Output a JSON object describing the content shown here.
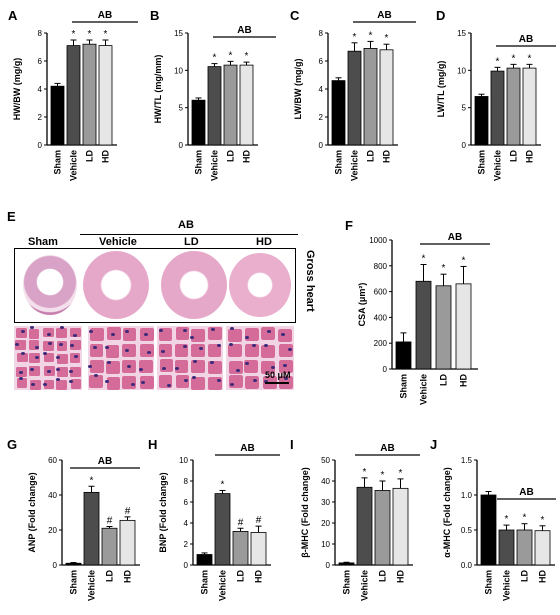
{
  "colors": {
    "sham": "#000000",
    "vehicle": "#4d4d4d",
    "ld": "#9a9a9a",
    "hd": "#e6e6e6",
    "gross_bg": "#ffffff",
    "tissue": "#d46b99",
    "tissue_light": "#f1d5e4",
    "lumen": "#ffffff",
    "nuclei": "#3b2a7a"
  },
  "panel_e": {
    "letter": "E",
    "group_label": "AB",
    "columns": [
      "Sham",
      "Vehicle",
      "LD",
      "HD"
    ],
    "side_label": "Gross heart",
    "scale_bar": "50 μM"
  },
  "chart_data": [
    {
      "panel": "A",
      "type": "bar",
      "group_label": "AB",
      "ylabel": "HW/BW (mg/g)",
      "ylim": [
        0,
        8
      ],
      "yticks": [
        0,
        2,
        4,
        6,
        8
      ],
      "categories": [
        "Sham",
        "Vehicle",
        "LD",
        "HD"
      ],
      "values": [
        4.2,
        7.1,
        7.2,
        7.1
      ],
      "errors": [
        0.2,
        0.4,
        0.3,
        0.4
      ],
      "marks": [
        "",
        "*",
        "*",
        "*"
      ]
    },
    {
      "panel": "B",
      "type": "bar",
      "group_label": "AB",
      "ylabel": "HW/TL (mg/mm)",
      "ylim": [
        0,
        15
      ],
      "yticks": [
        0,
        5,
        10,
        15
      ],
      "categories": [
        "Sham",
        "Vehicle",
        "LD",
        "HD"
      ],
      "values": [
        6.0,
        10.5,
        10.7,
        10.7
      ],
      "errors": [
        0.3,
        0.4,
        0.5,
        0.4
      ],
      "marks": [
        "",
        "*",
        "*",
        "*"
      ]
    },
    {
      "panel": "C",
      "type": "bar",
      "group_label": "AB",
      "ylabel": "LW/BW (mg/g)",
      "ylim": [
        0,
        8
      ],
      "yticks": [
        0,
        2,
        4,
        6,
        8
      ],
      "categories": [
        "Sham",
        "Vehicle",
        "LD",
        "HD"
      ],
      "values": [
        4.6,
        6.7,
        6.9,
        6.8
      ],
      "errors": [
        0.2,
        0.6,
        0.5,
        0.4
      ],
      "marks": [
        "",
        "*",
        "*",
        "*"
      ]
    },
    {
      "panel": "D",
      "type": "bar",
      "group_label": "AB",
      "ylabel": "LW/TL (mg/g)",
      "ylim": [
        0,
        15
      ],
      "yticks": [
        0,
        5,
        10,
        15
      ],
      "categories": [
        "Sham",
        "Vehicle",
        "LD",
        "HD"
      ],
      "values": [
        6.5,
        9.9,
        10.3,
        10.3
      ],
      "errors": [
        0.3,
        0.5,
        0.5,
        0.5
      ],
      "marks": [
        "",
        "*",
        "*",
        "*"
      ]
    },
    {
      "panel": "F",
      "type": "bar",
      "group_label": "AB",
      "ylabel": "CSA (μm²)",
      "ylim": [
        0,
        1000
      ],
      "yticks": [
        0,
        200,
        400,
        600,
        800,
        1000
      ],
      "categories": [
        "Sham",
        "Vehicle",
        "LD",
        "HD"
      ],
      "values": [
        210,
        680,
        645,
        660
      ],
      "errors": [
        70,
        130,
        90,
        135
      ],
      "marks": [
        "",
        "*",
        "*",
        "*"
      ]
    },
    {
      "panel": "G",
      "type": "bar",
      "group_label": "AB",
      "ylabel": "ANP (Fold change)",
      "ylim": [
        0,
        60
      ],
      "yticks": [
        0,
        20,
        40,
        60
      ],
      "categories": [
        "Sham",
        "Vehicle",
        "LD",
        "HD"
      ],
      "values": [
        1,
        41.5,
        21,
        25.5
      ],
      "errors": [
        0.4,
        3.5,
        1,
        2
      ],
      "marks": [
        "",
        "*",
        "#",
        "#"
      ]
    },
    {
      "panel": "H",
      "type": "bar",
      "group_label": "AB",
      "ylabel": "BNP (Fold change)",
      "ylim": [
        0,
        10
      ],
      "yticks": [
        0,
        2,
        4,
        6,
        8,
        10
      ],
      "categories": [
        "Sham",
        "Vehicle",
        "LD",
        "HD"
      ],
      "values": [
        1,
        6.8,
        3.2,
        3.1
      ],
      "errors": [
        0.15,
        0.3,
        0.3,
        0.6
      ],
      "marks": [
        "",
        "*",
        "#",
        "#"
      ]
    },
    {
      "panel": "I",
      "type": "bar",
      "group_label": "AB",
      "ylabel": "β-MHC (Fold change)",
      "ylim": [
        0,
        50
      ],
      "yticks": [
        0,
        10,
        20,
        30,
        40,
        50
      ],
      "categories": [
        "Sham",
        "Vehicle",
        "LD",
        "HD"
      ],
      "values": [
        1,
        37,
        35.5,
        36.5
      ],
      "errors": [
        0.3,
        4.5,
        4.5,
        4.5
      ],
      "marks": [
        "",
        "*",
        "*",
        "*"
      ]
    },
    {
      "panel": "J",
      "type": "bar",
      "group_label": "AB",
      "ylabel": "α-MHC (Fold change)",
      "ylim": [
        0,
        1.5
      ],
      "yticks": [
        0.0,
        0.5,
        1.0,
        1.5
      ],
      "categories": [
        "Sham",
        "Vehicle",
        "LD",
        "HD"
      ],
      "values": [
        1.0,
        0.5,
        0.5,
        0.49
      ],
      "errors": [
        0.05,
        0.07,
        0.09,
        0.07
      ],
      "marks": [
        "",
        "*",
        "*",
        "*"
      ]
    }
  ]
}
